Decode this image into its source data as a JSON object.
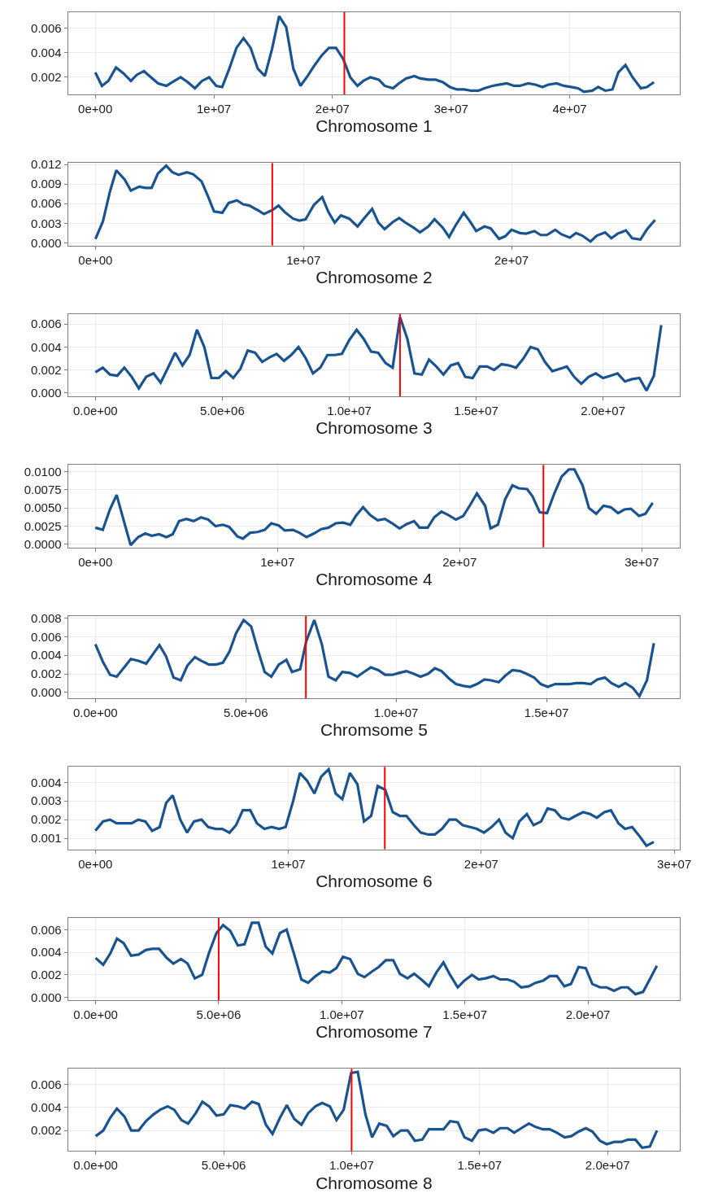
{
  "chart_data": [
    {
      "type": "line",
      "xlabel": "Chromosome 1",
      "grid": true,
      "xlim": [
        -2300000.0,
        49300000.0
      ],
      "ylim": [
        0.00059,
        0.00733
      ],
      "xticks": [
        {
          "value": 0,
          "label": "0e+00"
        },
        {
          "value": 10000000.0,
          "label": "1e+07"
        },
        {
          "value": 20000000.0,
          "label": "2e+07"
        },
        {
          "value": 30000000.0,
          "label": "3e+07"
        },
        {
          "value": 40000000.0,
          "label": "4e+07"
        }
      ],
      "yticks": [
        0.002,
        0.004,
        0.006
      ],
      "ref_lines": [
        {
          "axis": "x",
          "value": 21000000.0,
          "color": "#ff0000"
        }
      ],
      "series": [
        {
          "color": "#1a5490",
          "x": [
            0,
            560000.0,
            1100000.0,
            1750000.0,
            2400000.0,
            3000000.0,
            3500000.0,
            4100000.0,
            4700000.0,
            5300000.0,
            6000000.0,
            6500000.0,
            7200000.0,
            7800000.0,
            8400000.0,
            9000000.0,
            9600000.0,
            10200000.0,
            10700000.0,
            11300000.0,
            11900000.0,
            12500000.0,
            13100000.0,
            13700000.0,
            14300000.0,
            14900000.0,
            15500000.0,
            16100000.0,
            16700000.0,
            17300000.0,
            17900000.0,
            18500000.0,
            19100000.0,
            19700000.0,
            20300000.0,
            20900000.0,
            21500000.0,
            22100000.0,
            22600000.0,
            23200000.0,
            23900000.0,
            24400000.0,
            25100000.0,
            25600000.0,
            26200000.0,
            26900000.0,
            27400000.0,
            28100000.0,
            28700000.0,
            29300000.0,
            29900000.0,
            30500000.0,
            31100000.0,
            31700000.0,
            32300000.0,
            32800000.0,
            33500000.0,
            34100000.0,
            34700000.0,
            35300000.0,
            35800000.0,
            36500000.0,
            37100000.0,
            37700000.0,
            38200000.0,
            38900000.0,
            39500000.0,
            40100000.0,
            40700000.0,
            41200000.0,
            41900000.0,
            42400000.0,
            43000000.0,
            43600000.0,
            44100000.0,
            44700000.0,
            45300000.0,
            46000000.0,
            46500000.0,
            47100000.0
          ],
          "values": [
            0.0024,
            0.0013,
            0.0017,
            0.0028,
            0.0023,
            0.0017,
            0.0022,
            0.0025,
            0.002,
            0.0015,
            0.0013,
            0.0016,
            0.002,
            0.0016,
            0.0011,
            0.0017,
            0.002,
            0.0013,
            0.0012,
            0.0027,
            0.0044,
            0.0052,
            0.0044,
            0.0027,
            0.0021,
            0.0043,
            0.007,
            0.0061,
            0.0027,
            0.0013,
            0.0021,
            0.003,
            0.0038,
            0.0044,
            0.0044,
            0.0035,
            0.002,
            0.0013,
            0.0017,
            0.002,
            0.0018,
            0.0013,
            0.0011,
            0.0015,
            0.0019,
            0.0021,
            0.0019,
            0.0018,
            0.0018,
            0.0016,
            0.0012,
            0.001,
            0.001,
            0.0009,
            0.0009,
            0.0011,
            0.0013,
            0.0014,
            0.0015,
            0.0013,
            0.0013,
            0.0015,
            0.0014,
            0.0012,
            0.0014,
            0.0015,
            0.0013,
            0.0012,
            0.0011,
            0.0008,
            0.0009,
            0.0012,
            0.0009,
            0.001,
            0.0024,
            0.003,
            0.002,
            0.0011,
            0.0012,
            0.0016
          ]
        }
      ]
    },
    {
      "type": "line",
      "xlabel": "Chromosome 2",
      "grid": true,
      "xlim": [
        -1320000.0,
        28100000.0
      ],
      "ylim": [
        -0.0004,
        0.0122
      ],
      "xticks": [
        {
          "value": 0,
          "label": "0e+00"
        },
        {
          "value": 10000000.0,
          "label": "1e+07"
        },
        {
          "value": 20000000.0,
          "label": "2e+07"
        }
      ],
      "yticks": [
        {
          "value": 0,
          "label": "0.000"
        },
        0.003,
        0.006,
        0.009,
        0.012
      ],
      "ref_lines": [
        {
          "axis": "x",
          "value": 8500000.0,
          "color": "#ff0000"
        }
      ],
      "series": [
        {
          "color": "#1a5490",
          "x": [
            0,
            360000.0,
            700000.0,
            1000000.0,
            1400000.0,
            1700000.0,
            2100000.0,
            2400000.0,
            2700000.0,
            3000000.0,
            3400000.0,
            3700000.0,
            4000000.0,
            4400000.0,
            4700000.0,
            5100000.0,
            5400000.0,
            5700000.0,
            6100000.0,
            6400000.0,
            6800000.0,
            7100000.0,
            7400000.0,
            7800000.0,
            8100000.0,
            8500000.0,
            8800000.0,
            9100000.0,
            9500000.0,
            9800000.0,
            10100000.0,
            10500000.0,
            10900000.0,
            11200000.0,
            11500000.0,
            11800000.0,
            12200000.0,
            12600000.0,
            12900000.0,
            13300000.0,
            13600000.0,
            13900000.0,
            14300000.0,
            14600000.0,
            14900000.0,
            15300000.0,
            15600000.0,
            16000000.0,
            16300000.0,
            16700000.0,
            17000000.0,
            17300000.0,
            17700000.0,
            18000000.0,
            18300000.0,
            18700000.0,
            19000000.0,
            19400000.0,
            19700000.0,
            20000000.0,
            20400000.0,
            20700000.0,
            21100000.0,
            21400000.0,
            21700000.0,
            22100000.0,
            22400000.0,
            22800000.0,
            23100000.0,
            23400000.0,
            23800000.0,
            24100000.0,
            24500000.0,
            24800000.0,
            25100000.0,
            25500000.0,
            25800000.0,
            26200000.0,
            26500000.0,
            26900000.0
          ],
          "values": [
            0.0006,
            0.0033,
            0.0079,
            0.0111,
            0.0097,
            0.008,
            0.0086,
            0.0084,
            0.0084,
            0.0106,
            0.0118,
            0.0108,
            0.0104,
            0.0108,
            0.0105,
            0.0094,
            0.0072,
            0.0048,
            0.0046,
            0.0061,
            0.0065,
            0.0059,
            0.0057,
            0.005,
            0.0044,
            0.005,
            0.0057,
            0.0047,
            0.0037,
            0.0034,
            0.0036,
            0.0058,
            0.007,
            0.0047,
            0.0031,
            0.0042,
            0.0037,
            0.0025,
            0.0037,
            0.0052,
            0.0031,
            0.0021,
            0.0032,
            0.0038,
            0.0031,
            0.0023,
            0.0016,
            0.0025,
            0.0036,
            0.0023,
            0.0009,
            0.0026,
            0.0046,
            0.0033,
            0.0018,
            0.0025,
            0.0022,
            0.0006,
            0.001,
            0.002,
            0.0015,
            0.0014,
            0.0018,
            0.0012,
            0.0012,
            0.002,
            0.0013,
            0.0008,
            0.0015,
            0.0011,
            0.0002,
            0.0011,
            0.0016,
            0.0007,
            0.0014,
            0.0019,
            0.0007,
            0.0005,
            0.002,
            0.0035
          ]
        }
      ]
    },
    {
      "type": "line",
      "xlabel": "Chromosome 3",
      "grid": true,
      "xlim": [
        -1080000.0,
        23030000.0
      ],
      "ylim": [
        -0.0003,
        0.00687
      ],
      "xticks": [
        {
          "value": 0,
          "label": "0.0e+00"
        },
        {
          "value": 5000000.0,
          "label": "5.0e+06"
        },
        {
          "value": 10000000.0,
          "label": "1.0e+07"
        },
        {
          "value": 15000000.0,
          "label": "1.5e+07"
        },
        {
          "value": 20000000.0,
          "label": "2.0e+07"
        }
      ],
      "yticks": [
        {
          "value": 0,
          "label": "0.000"
        },
        0.002,
        0.004,
        0.006
      ],
      "ref_lines": [
        {
          "axis": "x",
          "value": 12000000.0,
          "color": "#ff0000"
        }
      ],
      "series": [
        {
          "color": "#1a5490",
          "x": [
            0,
            290000.0,
            570000.0,
            860000.0,
            1140000.0,
            1430000.0,
            1710000.0,
            2000000.0,
            2290000.0,
            2570000.0,
            2860000.0,
            3140000.0,
            3430000.0,
            3710000.0,
            4000000.0,
            4290000.0,
            4570000.0,
            4860000.0,
            5140000.0,
            5430000.0,
            5710000.0,
            6000000.0,
            6290000.0,
            6570000.0,
            6860000.0,
            7140000.0,
            7430000.0,
            7710000.0,
            8000000.0,
            8290000.0,
            8570000.0,
            8860000.0,
            9140000.0,
            9430000.0,
            9710000.0,
            10000000.0,
            10290000.0,
            10570000.0,
            10860000.0,
            11140000.0,
            11430000.0,
            11710000.0,
            12000000.0,
            12290000.0,
            12570000.0,
            12860000.0,
            13140000.0,
            13430000.0,
            13710000.0,
            14000000.0,
            14290000.0,
            14570000.0,
            14860000.0,
            15140000.0,
            15430000.0,
            15710000.0,
            16000000.0,
            16290000.0,
            16570000.0,
            16860000.0,
            17140000.0,
            17430000.0,
            17710000.0,
            18000000.0,
            18290000.0,
            18570000.0,
            18860000.0,
            19140000.0,
            19430000.0,
            19710000.0,
            20000000.0,
            20290000.0,
            20570000.0,
            20860000.0,
            21140000.0,
            21430000.0,
            21710000.0,
            22000000.0,
            22290000.0
          ],
          "values": [
            0.0018,
            0.0022,
            0.0016,
            0.0015,
            0.0022,
            0.0014,
            0.0004,
            0.0014,
            0.0017,
            0.0009,
            0.0022,
            0.0035,
            0.0024,
            0.0033,
            0.0055,
            0.004,
            0.0013,
            0.0013,
            0.0019,
            0.0013,
            0.0021,
            0.0037,
            0.0035,
            0.0027,
            0.0031,
            0.0034,
            0.0028,
            0.0033,
            0.004,
            0.003,
            0.0017,
            0.0022,
            0.0033,
            0.0033,
            0.0034,
            0.0046,
            0.0055,
            0.0047,
            0.0036,
            0.0035,
            0.0026,
            0.0022,
            0.0066,
            0.0047,
            0.0017,
            0.0016,
            0.0029,
            0.0023,
            0.0016,
            0.0024,
            0.0026,
            0.0014,
            0.0013,
            0.0023,
            0.0023,
            0.002,
            0.0025,
            0.0024,
            0.0022,
            0.003,
            0.004,
            0.0038,
            0.0027,
            0.0019,
            0.0021,
            0.0023,
            0.0014,
            0.0008,
            0.0014,
            0.0017,
            0.0013,
            0.0015,
            0.0017,
            0.001,
            0.0012,
            0.0013,
            0.0002,
            0.0015,
            0.0059
          ]
        }
      ]
    },
    {
      "type": "line",
      "xlabel": "Chromosome 4",
      "grid": true,
      "xlim": [
        -1500000.0,
        32100000.0
      ],
      "ylim": [
        -0.0004,
        0.0109
      ],
      "xticks": [
        {
          "value": 0,
          "label": "0e+00"
        },
        {
          "value": 10000000.0,
          "label": "1e+07"
        },
        {
          "value": 20000000.0,
          "label": "2e+07"
        },
        {
          "value": 30000000.0,
          "label": "3e+07"
        }
      ],
      "yticks": [
        {
          "value": 0,
          "label": "0.0000"
        },
        {
          "value": 0.0025,
          "label": "0.0025"
        },
        {
          "value": 0.005,
          "label": "0.0050"
        },
        {
          "value": 0.0075,
          "label": "0.0075"
        },
        {
          "value": 0.01,
          "label": "0.0100"
        }
      ],
      "ref_lines": [
        {
          "axis": "x",
          "value": 24600000.0,
          "color": "#ff0000"
        }
      ],
      "series": [
        {
          "color": "#1a5490",
          "x": [
            0,
            410000.0,
            800000.0,
            1170000.0,
            1580000.0,
            1940000.0,
            2350000.0,
            2740000.0,
            3100000.0,
            3500000.0,
            3900000.0,
            4250000.0,
            4600000.0,
            5000000.0,
            5400000.0,
            5800000.0,
            6200000.0,
            6600000.0,
            7000000.0,
            7350000.0,
            7800000.0,
            8100000.0,
            8500000.0,
            8900000.0,
            9300000.0,
            9660000.0,
            10070000.0,
            10400000.0,
            10850000.0,
            11200000.0,
            11600000.0,
            12000000.0,
            12400000.0,
            12800000.0,
            13200000.0,
            13600000.0,
            14000000.0,
            14300000.0,
            14700000.0,
            15100000.0,
            15500000.0,
            15900000.0,
            16300000.0,
            16700000.0,
            17100000.0,
            17500000.0,
            17800000.0,
            18250000.0,
            18600000.0,
            19000000.0,
            19400000.0,
            19800000.0,
            20200000.0,
            20600000.0,
            20950000.0,
            21400000.0,
            21700000.0,
            22100000.0,
            22500000.0,
            22900000.0,
            23250000.0,
            23700000.0,
            24000000.0,
            24400000.0,
            24800000.0,
            25200000.0,
            25600000.0,
            26000000.0,
            26300000.0,
            26750000.0,
            27100000.0,
            27500000.0,
            27900000.0,
            28300000.0,
            28700000.0,
            29050000.0,
            29400000.0,
            29850000.0,
            30200000.0,
            30600000.0
          ],
          "values": [
            0.0023,
            0.002,
            0.0048,
            0.0068,
            0.0031,
            -0.0001,
            0.001,
            0.0015,
            0.0012,
            0.0014,
            0.001,
            0.0014,
            0.0032,
            0.0035,
            0.0032,
            0.0037,
            0.0034,
            0.0025,
            0.0027,
            0.0024,
            0.0011,
            0.0008,
            0.0016,
            0.0017,
            0.002,
            0.0029,
            0.0026,
            0.0019,
            0.002,
            0.0016,
            0.001,
            0.0015,
            0.0021,
            0.0023,
            0.0029,
            0.003,
            0.0027,
            0.0039,
            0.0051,
            0.004,
            0.0033,
            0.0035,
            0.0029,
            0.0022,
            0.0028,
            0.0032,
            0.0023,
            0.0023,
            0.0037,
            0.0045,
            0.004,
            0.0034,
            0.0039,
            0.0055,
            0.007,
            0.0053,
            0.0022,
            0.0027,
            0.0062,
            0.0081,
            0.0077,
            0.0076,
            0.0066,
            0.0044,
            0.0043,
            0.007,
            0.0093,
            0.0103,
            0.0103,
            0.0081,
            0.005,
            0.0042,
            0.0053,
            0.0051,
            0.0043,
            0.0048,
            0.0049,
            0.0039,
            0.0042,
            0.0057
          ]
        }
      ]
    },
    {
      "type": "line",
      "xlabel": "Chromsome 5",
      "grid": true,
      "xlim": [
        -910000.0,
        19440000.0
      ],
      "ylim": [
        -0.00063,
        0.00824
      ],
      "xticks": [
        {
          "value": 0,
          "label": "0.0e+00"
        },
        {
          "value": 5000000.0,
          "label": "5.0e+06"
        },
        {
          "value": 10000000.0,
          "label": "1.0e+07"
        },
        {
          "value": 15000000.0,
          "label": "1.5e+07"
        }
      ],
      "yticks": [
        {
          "value": 0,
          "label": "0.000"
        },
        0.002,
        0.004,
        0.006,
        0.008
      ],
      "ref_lines": [
        {
          "axis": "x",
          "value": 7000000.0,
          "color": "#ff0000"
        }
      ],
      "series": [
        {
          "color": "#1a5490",
          "x": [
            0,
            250000.0,
            490000.0,
            710000.0,
            960000.0,
            1180000.0,
            1430000.0,
            1690000.0,
            1910000.0,
            2130000.0,
            2350000.0,
            2600000.0,
            2840000.0,
            3060000.0,
            3310000.0,
            3530000.0,
            3780000.0,
            4010000.0,
            4240000.0,
            4460000.0,
            4680000.0,
            4930000.0,
            5180000.0,
            5400000.0,
            5630000.0,
            5850000.0,
            6100000.0,
            6350000.0,
            6540000.0,
            6810000.0,
            7010000.0,
            7280000.0,
            7530000.0,
            7750000.0,
            7990000.0,
            8210000.0,
            8460000.0,
            8710000.0,
            8930000.0,
            9160000.0,
            9410000.0,
            9630000.0,
            9880000.0,
            10100000.0,
            10340000.0,
            10590000.0,
            10810000.0,
            11060000.0,
            11290000.0,
            11510000.0,
            11760000.0,
            11990000.0,
            12240000.0,
            12460000.0,
            12690000.0,
            12940000.0,
            13160000.0,
            13410000.0,
            13630000.0,
            13870000.0,
            14120000.0,
            14340000.0,
            14590000.0,
            14810000.0,
            15040000.0,
            15290000.0,
            15510000.0,
            15760000.0,
            15990000.0,
            16220000.0,
            16470000.0,
            16690000.0,
            16940000.0,
            17160000.0,
            17400000.0,
            17620000.0,
            17870000.0,
            18090000.0,
            18340000.0,
            18570000.0
          ],
          "values": [
            0.0052,
            0.0033,
            0.0019,
            0.0017,
            0.0027,
            0.0036,
            0.0034,
            0.0031,
            0.0041,
            0.0051,
            0.0039,
            0.0016,
            0.0013,
            0.0029,
            0.0038,
            0.0034,
            0.003,
            0.003,
            0.0032,
            0.0044,
            0.0064,
            0.0078,
            0.0071,
            0.0046,
            0.0022,
            0.0017,
            0.003,
            0.0035,
            0.0022,
            0.0025,
            0.0055,
            0.0078,
            0.0052,
            0.0017,
            0.0013,
            0.0022,
            0.0021,
            0.0017,
            0.0022,
            0.0027,
            0.0024,
            0.0019,
            0.0019,
            0.0021,
            0.0023,
            0.002,
            0.0017,
            0.002,
            0.0026,
            0.0023,
            0.0015,
            0.0009,
            0.0007,
            0.0006,
            0.0009,
            0.0014,
            0.0013,
            0.0011,
            0.0018,
            0.0024,
            0.0023,
            0.002,
            0.0016,
            0.0009,
            0.0006,
            0.0009,
            0.0009,
            0.0009,
            0.001,
            0.001,
            0.0009,
            0.0014,
            0.0016,
            0.001,
            0.0006,
            0.001,
            0.0005,
            -0.0004,
            0.0013,
            0.0053
          ]
        }
      ]
    },
    {
      "type": "line",
      "xlabel": "Chromosome 6",
      "grid": true,
      "xlim": [
        -1420000.0,
        30300000.0
      ],
      "ylim": [
        0.00041,
        0.00483
      ],
      "xticks": [
        {
          "value": 0,
          "label": "0e+00"
        },
        {
          "value": 10000000.0,
          "label": "1e+07"
        },
        {
          "value": 20000000.0,
          "label": "2e+07"
        },
        {
          "value": 30000000.0,
          "label": "3e+07"
        }
      ],
      "yticks": [
        0.001,
        0.002,
        0.003,
        0.004
      ],
      "ref_lines": [
        {
          "axis": "x",
          "value": 15000000.0,
          "color": "#ff0000"
        }
      ],
      "series": [
        {
          "color": "#1a5490",
          "x": [
            0,
            390000.0,
            760000.0,
            1100000.0,
            1490000.0,
            1880000.0,
            2220000.0,
            2590000.0,
            2940000.0,
            3330000.0,
            3670000.0,
            4010000.0,
            4400000.0,
            4750000.0,
            5110000.0,
            5500000.0,
            5850000.0,
            6240000.0,
            6580000.0,
            6950000.0,
            7290000.0,
            7640000.0,
            8030000.0,
            8370000.0,
            8760000.0,
            9130000.0,
            9520000.0,
            9860000.0,
            10250000.0,
            10600000.0,
            10960000.0,
            11350000.0,
            11700000.0,
            12090000.0,
            12450000.0,
            12800000.0,
            13190000.0,
            13580000.0,
            13920000.0,
            14290000.0,
            14630000.0,
            15020000.0,
            15410000.0,
            15780000.0,
            16120000.0,
            16510000.0,
            16860000.0,
            17250000.0,
            17590000.0,
            17960000.0,
            18350000.0,
            18690000.0,
            19040000.0,
            19430000.0,
            19770000.0,
            20140000.0,
            20530000.0,
            20920000.0,
            21260000.0,
            21630000.0,
            21970000.0,
            22360000.0,
            22710000.0,
            23100000.0,
            23440000.0,
            23810000.0,
            24150000.0,
            24540000.0,
            24890000.0,
            25280000.0,
            25640000.0,
            25990000.0,
            26380000.0,
            26720000.0,
            27110000.0,
            27450000.0,
            27820000.0,
            28210000.0,
            28560000.0,
            28940000.0
          ],
          "values": [
            0.0014,
            0.0019,
            0.002,
            0.0018,
            0.0018,
            0.0018,
            0.002,
            0.0019,
            0.0014,
            0.0016,
            0.0029,
            0.0033,
            0.002,
            0.0013,
            0.0019,
            0.002,
            0.0016,
            0.0015,
            0.0015,
            0.0013,
            0.0017,
            0.0025,
            0.0025,
            0.0018,
            0.0015,
            0.0016,
            0.0015,
            0.0016,
            0.003,
            0.0045,
            0.0041,
            0.0034,
            0.0043,
            0.0047,
            0.0034,
            0.0031,
            0.0045,
            0.0039,
            0.0019,
            0.0022,
            0.0038,
            0.0036,
            0.0024,
            0.0022,
            0.0022,
            0.0017,
            0.0013,
            0.0012,
            0.0012,
            0.0015,
            0.002,
            0.002,
            0.0017,
            0.0016,
            0.0015,
            0.0013,
            0.0016,
            0.002,
            0.0013,
            0.001,
            0.0019,
            0.0023,
            0.0017,
            0.0019,
            0.0026,
            0.0025,
            0.0021,
            0.002,
            0.0022,
            0.0024,
            0.0023,
            0.0021,
            0.0024,
            0.0025,
            0.0018,
            0.0015,
            0.0016,
            0.0011,
            0.0006,
            0.0008
          ]
        }
      ]
    },
    {
      "type": "line",
      "xlabel": "Chromosome 7",
      "grid": true,
      "xlim": [
        -1120000.0,
        23740000.0
      ],
      "ylim": [
        -0.00023,
        0.00704
      ],
      "xticks": [
        {
          "value": 0,
          "label": "0.0e+00"
        },
        {
          "value": 5000000.0,
          "label": "5.0e+06"
        },
        {
          "value": 10000000.0,
          "label": "1.0e+07"
        },
        {
          "value": 15000000.0,
          "label": "1.5e+07"
        },
        {
          "value": 20000000.0,
          "label": "2.0e+07"
        }
      ],
      "yticks": [
        {
          "value": 0,
          "label": "0.000"
        },
        0.002,
        0.004,
        0.006
      ],
      "ref_lines": [
        {
          "axis": "x",
          "value": 5000000.0,
          "color": "#ff0000"
        }
      ],
      "series": [
        {
          "color": "#1a5490",
          "x": [
            0,
            310000.0,
            600000.0,
            870000.0,
            1140000.0,
            1440000.0,
            1750000.0,
            2040000.0,
            2310000.0,
            2580000.0,
            2890000.0,
            3160000.0,
            3470000.0,
            3740000.0,
            4030000.0,
            4330000.0,
            4600000.0,
            4910000.0,
            5180000.0,
            5470000.0,
            5780000.0,
            6050000.0,
            6350000.0,
            6620000.0,
            6910000.0,
            7180000.0,
            7490000.0,
            7760000.0,
            8070000.0,
            8360000.0,
            8630000.0,
            8940000.0,
            9210000.0,
            9510000.0,
            9780000.0,
            10050000.0,
            10340000.0,
            10650000.0,
            10920000.0,
            11230000.0,
            11500000.0,
            11790000.0,
            12090000.0,
            12360000.0,
            12670000.0,
            12940000.0,
            13230000.0,
            13540000.0,
            13840000.0,
            14130000.0,
            14400000.0,
            14710000.0,
            14980000.0,
            15290000.0,
            15560000.0,
            15850000.0,
            16160000.0,
            16430000.0,
            16730000.0,
            17000000.0,
            17290000.0,
            17600000.0,
            17870000.0,
            18180000.0,
            18450000.0,
            18740000.0,
            19040000.0,
            19310000.0,
            19620000.0,
            19910000.0,
            20180000.0,
            20490000.0,
            20760000.0,
            21060000.0,
            21350000.0,
            21620000.0,
            21930000.0,
            22240000.0,
            22510000.0,
            22800000.0
          ],
          "values": [
            0.0035,
            0.0029,
            0.0039,
            0.0052,
            0.0048,
            0.0037,
            0.0038,
            0.0042,
            0.0043,
            0.0043,
            0.0035,
            0.003,
            0.0034,
            0.003,
            0.0017,
            0.002,
            0.0039,
            0.0057,
            0.0064,
            0.0059,
            0.0046,
            0.0047,
            0.0066,
            0.0066,
            0.0045,
            0.0039,
            0.0057,
            0.006,
            0.0038,
            0.0016,
            0.0013,
            0.0019,
            0.0023,
            0.0022,
            0.0026,
            0.0036,
            0.0034,
            0.0021,
            0.0018,
            0.0023,
            0.0027,
            0.0033,
            0.0033,
            0.0021,
            0.0017,
            0.0021,
            0.0016,
            0.001,
            0.0022,
            0.0031,
            0.002,
            0.0009,
            0.0015,
            0.002,
            0.0016,
            0.0017,
            0.0019,
            0.0016,
            0.0016,
            0.0014,
            0.0009,
            0.001,
            0.0013,
            0.0015,
            0.0019,
            0.0019,
            0.001,
            0.0012,
            0.0027,
            0.0026,
            0.0012,
            0.0009,
            0.0009,
            0.0006,
            0.0009,
            0.0009,
            0.0003,
            0.0005,
            0.0016,
            0.0028
          ]
        }
      ]
    },
    {
      "type": "line",
      "xlabel": "Chromosome 8",
      "grid": true,
      "xlim": [
        -1080000.0,
        22830000.0
      ],
      "ylim": [
        0.0002,
        0.00737
      ],
      "xticks": [
        {
          "value": 0,
          "label": "0.0e+00"
        },
        {
          "value": 5000000.0,
          "label": "5.0e+06"
        },
        {
          "value": 10000000.0,
          "label": "1.0e+07"
        },
        {
          "value": 15000000.0,
          "label": "1.5e+07"
        },
        {
          "value": 20000000.0,
          "label": "2.0e+07"
        }
      ],
      "yticks": [
        0.002,
        0.004,
        0.006
      ],
      "ref_lines": [
        {
          "axis": "x",
          "value": 10000000.0,
          "color": "#ff0000"
        }
      ],
      "series": [
        {
          "color": "#1a5490",
          "x": [
            0,
            300000.0,
            570000.0,
            830000.0,
            1130000.0,
            1390000.0,
            1680000.0,
            1960000.0,
            2260000.0,
            2520000.0,
            2810000.0,
            3070000.0,
            3350000.0,
            3610000.0,
            3910000.0,
            4170000.0,
            4430000.0,
            4720000.0,
            5000000.0,
            5260000.0,
            5560000.0,
            5820000.0,
            6110000.0,
            6370000.0,
            6650000.0,
            6910000.0,
            7200000.0,
            7470000.0,
            7760000.0,
            8040000.0,
            8300000.0,
            8590000.0,
            8850000.0,
            9150000.0,
            9410000.0,
            9690000.0,
            9980000.0,
            10240000.0,
            10540000.0,
            10800000.0,
            11080000.0,
            11370000.0,
            11630000.0,
            11930000.0,
            12190000.0,
            12470000.0,
            12760000.0,
            13020000.0,
            13320000.0,
            13590000.0,
            13850000.0,
            14150000.0,
            14410000.0,
            14700000.0,
            14970000.0,
            15240000.0,
            15540000.0,
            15800000.0,
            16090000.0,
            16350000.0,
            16630000.0,
            16930000.0,
            17190000.0,
            17480000.0,
            17740000.0,
            18020000.0,
            18320000.0,
            18580000.0,
            18870000.0,
            19150000.0,
            19410000.0,
            19700000.0,
            19970000.0,
            20260000.0,
            20540000.0,
            20800000.0,
            21090000.0,
            21350000.0,
            21650000.0,
            21930000.0
          ],
          "values": [
            0.0015,
            0.002,
            0.0031,
            0.0039,
            0.0032,
            0.002,
            0.002,
            0.0028,
            0.0034,
            0.0038,
            0.0041,
            0.0038,
            0.0029,
            0.0026,
            0.0035,
            0.0045,
            0.0041,
            0.0033,
            0.0034,
            0.0042,
            0.0041,
            0.0039,
            0.0045,
            0.0043,
            0.0025,
            0.0017,
            0.0031,
            0.0042,
            0.003,
            0.0025,
            0.0035,
            0.0041,
            0.0044,
            0.0041,
            0.0029,
            0.0038,
            0.007,
            0.0071,
            0.0034,
            0.0014,
            0.0026,
            0.0024,
            0.0015,
            0.002,
            0.002,
            0.0011,
            0.0012,
            0.0021,
            0.0021,
            0.0021,
            0.0028,
            0.0027,
            0.0014,
            0.0011,
            0.002,
            0.0021,
            0.0018,
            0.0022,
            0.0022,
            0.0018,
            0.0022,
            0.0026,
            0.0023,
            0.0021,
            0.0021,
            0.0018,
            0.0014,
            0.0015,
            0.0019,
            0.0022,
            0.0019,
            0.0011,
            0.0008,
            0.001,
            0.001,
            0.0012,
            0.0012,
            0.0005,
            0.0006,
            0.002
          ]
        }
      ]
    }
  ]
}
